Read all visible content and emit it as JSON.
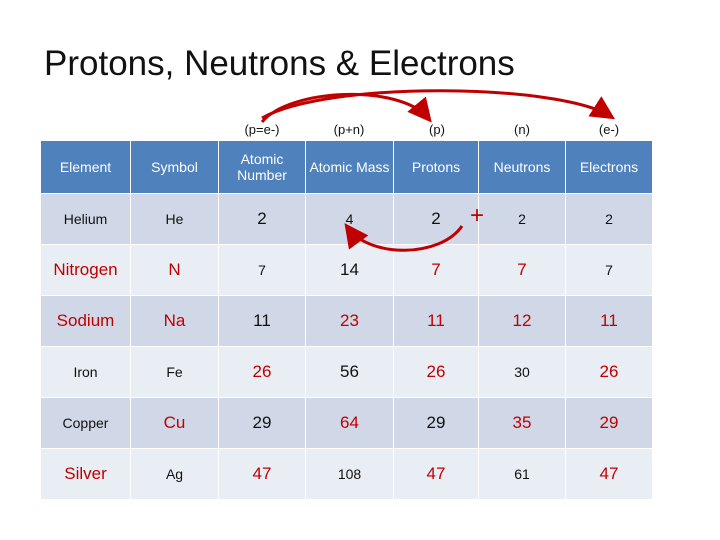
{
  "title": "Protons, Neutrons & Electrons",
  "column_notes": [
    "(p=e-)",
    "(p+n)",
    "(p)",
    "(n)",
    "(e-)"
  ],
  "plus_sign": "+",
  "table": {
    "header": [
      "Element",
      "Symbol",
      "Atomic Number",
      "Atomic Mass",
      "Protons",
      "Neutrons",
      "Electrons"
    ],
    "rows": [
      [
        "Helium",
        "He",
        "2",
        "4",
        "2",
        "2",
        "2"
      ],
      [
        "Nitrogen",
        "N",
        "7",
        "14",
        "7",
        "7",
        "7"
      ],
      [
        "Sodium",
        "Na",
        "11",
        "23",
        "11",
        "12",
        "11"
      ],
      [
        "Iron",
        "Fe",
        "26",
        "56",
        "26",
        "30",
        "26"
      ],
      [
        "Copper",
        "Cu",
        "29",
        "64",
        "29",
        "35",
        "29"
      ],
      [
        "Silver",
        "Ag",
        "47",
        "108",
        "47",
        "61",
        "47"
      ]
    ]
  }
}
